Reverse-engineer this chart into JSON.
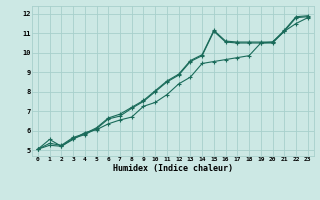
{
  "xlabel": "Humidex (Indice chaleur)",
  "xlim": [
    -0.5,
    23.5
  ],
  "ylim": [
    4.7,
    12.4
  ],
  "xticks": [
    0,
    1,
    2,
    3,
    4,
    5,
    6,
    7,
    8,
    9,
    10,
    11,
    12,
    13,
    14,
    15,
    16,
    17,
    18,
    19,
    20,
    21,
    22,
    23
  ],
  "yticks": [
    5,
    6,
    7,
    8,
    9,
    10,
    11,
    12
  ],
  "bg_color": "#cce8e4",
  "grid_color": "#a8d0cc",
  "line_color": "#1a6b5a",
  "line1_x": [
    0,
    1,
    2,
    3,
    4,
    5,
    6,
    7,
    8,
    9,
    10,
    11,
    12,
    13,
    14,
    15,
    16,
    17,
    18,
    19,
    20,
    21,
    22,
    23
  ],
  "line1_y": [
    5.05,
    5.55,
    5.2,
    5.55,
    5.9,
    6.05,
    6.35,
    6.55,
    6.7,
    7.25,
    7.45,
    7.85,
    8.4,
    8.75,
    9.45,
    9.55,
    9.65,
    9.75,
    9.85,
    10.5,
    10.55,
    11.1,
    11.5,
    11.8
  ],
  "line2_x": [
    0,
    1,
    2,
    3,
    4,
    5,
    6,
    7,
    8,
    9,
    10,
    11,
    12,
    13,
    14,
    15,
    16,
    17,
    18,
    19,
    20,
    21,
    22,
    23
  ],
  "line2_y": [
    5.05,
    5.25,
    5.2,
    5.6,
    5.8,
    6.1,
    6.6,
    6.75,
    7.15,
    7.5,
    8.0,
    8.5,
    8.85,
    9.55,
    9.85,
    11.1,
    10.55,
    10.5,
    10.5,
    10.5,
    10.5,
    11.1,
    11.8,
    11.85
  ],
  "line3_x": [
    0,
    1,
    2,
    3,
    4,
    5,
    6,
    7,
    8,
    9,
    10,
    11,
    12,
    13,
    14,
    15,
    16,
    17,
    18,
    19,
    20,
    21,
    22,
    23
  ],
  "line3_y": [
    5.05,
    5.35,
    5.25,
    5.65,
    5.85,
    6.15,
    6.65,
    6.85,
    7.2,
    7.55,
    8.05,
    8.55,
    8.9,
    9.6,
    9.9,
    11.15,
    10.6,
    10.55,
    10.55,
    10.55,
    10.55,
    11.15,
    11.85,
    11.9
  ]
}
